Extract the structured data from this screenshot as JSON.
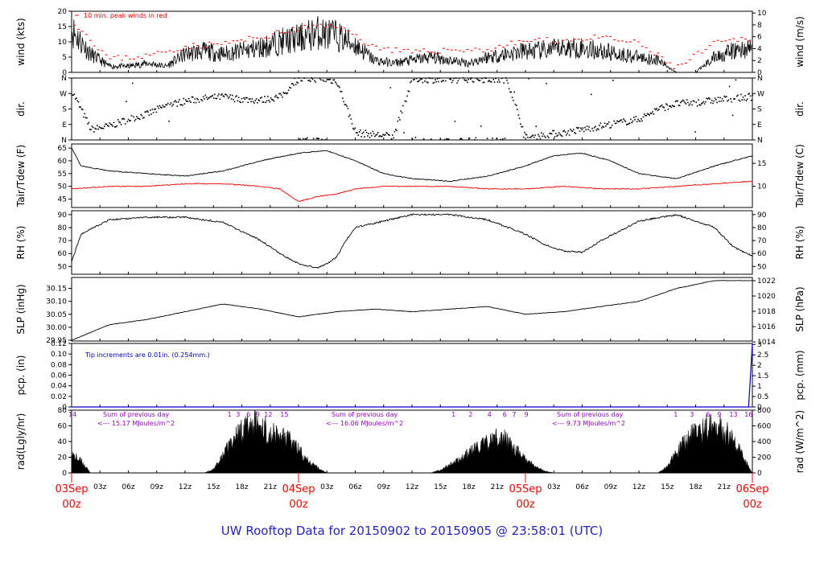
{
  "footer_title": "UW Rooftop Data for 20150902  to  20150905 @ 23:58:01  (UTC)",
  "colors": {
    "black": "#000000",
    "red": "#ff0000",
    "blue": "#0000cc",
    "purple": "#9900cc",
    "footer": "#2222cc"
  },
  "chart_data": [
    {
      "type": "line",
      "id": "wind",
      "ylabel_left": "wind (kts)",
      "ylabel_right": "wind (m/s)",
      "ylim": [
        0,
        20
      ],
      "left_ticks": [
        "0",
        "5",
        "10",
        "15",
        "20"
      ],
      "right_ticks": [
        "0",
        "2",
        "4",
        "6",
        "8",
        "10"
      ],
      "annotation": "10 min. peak winds in red",
      "series": [
        {
          "name": "wind",
          "color": "#000000",
          "x": [
            0,
            2,
            4,
            6,
            8,
            10,
            12,
            14,
            16,
            18,
            20,
            22,
            24,
            26,
            28,
            30,
            32,
            34,
            36,
            38,
            40,
            42,
            44,
            46,
            48,
            50,
            52,
            54,
            56,
            58,
            60,
            62,
            64,
            66,
            68,
            70,
            72
          ],
          "values": [
            14,
            6,
            2,
            2,
            3,
            2,
            6,
            7,
            6,
            7,
            8,
            10,
            11,
            13,
            12,
            9,
            4,
            3,
            4,
            5,
            4,
            3,
            5,
            6,
            7,
            7,
            8,
            8,
            7,
            6,
            5,
            4,
            0,
            0,
            5,
            7,
            8
          ]
        },
        {
          "name": "10 min. peak",
          "color": "#ff0000",
          "x": [
            0,
            4,
            8,
            12,
            16,
            20,
            24,
            28,
            32,
            36,
            40,
            44,
            48,
            52,
            56,
            60,
            64,
            68,
            72
          ],
          "values": [
            17,
            4,
            5,
            8,
            9,
            11,
            14,
            15,
            8,
            6,
            7,
            7,
            10,
            10,
            11,
            9,
            1,
            9,
            11
          ]
        }
      ]
    },
    {
      "type": "scatter",
      "id": "dir",
      "ylabel_left": "dir.",
      "ylabel_right": "dir.",
      "left_ticks": [
        "N",
        "E",
        "S",
        "W",
        "N"
      ],
      "right_ticks": [
        "N",
        "E",
        "S",
        "W",
        "N"
      ],
      "x": [
        0,
        2,
        4,
        6,
        8,
        10,
        12,
        14,
        16,
        18,
        20,
        22,
        24,
        26,
        28,
        30,
        32,
        34,
        36,
        38,
        40,
        42,
        44,
        46,
        48,
        50,
        52,
        54,
        56,
        58,
        60,
        62,
        64,
        66,
        68,
        70,
        72
      ],
      "values": [
        280,
        60,
        80,
        120,
        150,
        200,
        225,
        240,
        250,
        235,
        230,
        250,
        350,
        355,
        340,
        40,
        30,
        20,
        355,
        350,
        345,
        355,
        350,
        350,
        10,
        30,
        40,
        60,
        80,
        100,
        120,
        180,
        210,
        215,
        230,
        240,
        250
      ]
    },
    {
      "type": "line",
      "id": "temp",
      "ylabel_left": "Tair/Tdew (F)",
      "ylabel_right": "Tair/Tdew (C)",
      "left_ticks": [
        "45",
        "50",
        "55",
        "60",
        "65"
      ],
      "right_ticks": [
        "10",
        "15"
      ],
      "series": [
        {
          "name": "Tair",
          "color": "#000000",
          "x": [
            0,
            1,
            4,
            8,
            12,
            16,
            20,
            24,
            27,
            30,
            33,
            36,
            40,
            44,
            48,
            51,
            54,
            57,
            60,
            64,
            68,
            72
          ],
          "values": [
            65,
            58,
            56,
            55,
            54,
            56,
            60,
            63,
            64,
            60,
            55,
            53,
            52,
            54,
            58,
            62,
            63,
            60,
            55,
            53,
            58,
            62
          ]
        },
        {
          "name": "Tdew",
          "color": "#ff0000",
          "x": [
            0,
            4,
            8,
            12,
            16,
            20,
            22,
            24,
            26,
            28,
            30,
            33,
            36,
            40,
            44,
            48,
            52,
            56,
            60,
            64,
            68,
            72
          ],
          "values": [
            49,
            50,
            50,
            51,
            51,
            50,
            49,
            44,
            46,
            47,
            49,
            50,
            50,
            50,
            49,
            49,
            50,
            49,
            49,
            50,
            51,
            52
          ]
        }
      ]
    },
    {
      "type": "line",
      "id": "rh",
      "ylabel_left": "RH (%)",
      "ylabel_right": "RH (%)",
      "left_ticks": [
        "50",
        "60",
        "70",
        "80",
        "90"
      ],
      "right_ticks": [
        "50",
        "60",
        "70",
        "80",
        "90"
      ],
      "series": [
        {
          "name": "RH",
          "color": "#000000",
          "x": [
            0,
            1,
            4,
            8,
            12,
            16,
            20,
            22,
            24,
            26,
            27,
            28,
            29,
            30,
            33,
            36,
            40,
            44,
            48,
            50,
            52,
            54,
            56,
            60,
            64,
            68,
            70,
            72
          ],
          "values": [
            54,
            75,
            86,
            88,
            88,
            84,
            70,
            60,
            52,
            49,
            52,
            57,
            70,
            80,
            85,
            90,
            90,
            86,
            75,
            67,
            62,
            61,
            70,
            85,
            90,
            80,
            65,
            58
          ]
        }
      ]
    },
    {
      "type": "line",
      "id": "slp",
      "ylabel_left": "SLP (inHg)",
      "ylabel_right": "SLP (hPa)",
      "left_ticks": [
        "29.95",
        "30.00",
        "30.05",
        "30.10",
        "30.15"
      ],
      "right_ticks": [
        "1014",
        "1016",
        "1018",
        "1020",
        "1022"
      ],
      "series": [
        {
          "name": "SLP",
          "color": "#000000",
          "x": [
            0,
            4,
            8,
            12,
            16,
            20,
            24,
            28,
            32,
            36,
            40,
            44,
            48,
            52,
            56,
            60,
            64,
            68,
            72
          ],
          "values": [
            29.95,
            30.01,
            30.03,
            30.06,
            30.09,
            30.07,
            30.04,
            30.06,
            30.07,
            30.06,
            30.07,
            30.08,
            30.05,
            30.06,
            30.08,
            30.1,
            30.15,
            30.18,
            30.18
          ]
        }
      ]
    },
    {
      "type": "line",
      "id": "pcp",
      "ylabel_left": "pcp. (in)",
      "ylabel_right": "pcp. (mm)",
      "left_ticks": [
        "0",
        "0.02",
        "0.04",
        "0.06",
        "0.08",
        "0.10",
        "0.12"
      ],
      "right_ticks": [
        "0",
        "0.5",
        "1",
        "1.5",
        "2",
        "2.5",
        "3"
      ],
      "annotation": "Tip increments are 0.01in. (0.254mm.)",
      "series": [
        {
          "name": "pcp",
          "color": "#0000cc",
          "x": [
            0,
            71.6,
            72
          ],
          "values": [
            0,
            0,
            0.12
          ]
        }
      ]
    },
    {
      "type": "area",
      "id": "rad",
      "ylabel_left": "rad(Lgly/hr)",
      "ylabel_right": "rad (W/m^2)",
      "left_ticks": [
        "0",
        "20",
        "40",
        "60",
        "80"
      ],
      "right_ticks": [
        "0",
        "200",
        "400",
        "600",
        "800"
      ],
      "day_labels": [
        "Sum of previous day",
        "Sum of previous day",
        "Sum of previous day"
      ],
      "day_values": [
        "<--- 15.17 MJoules/m^2",
        "<--- 16.06 MJoules/m^2",
        "<--- 9.73 MJoules/m^2"
      ],
      "hour_marks": [
        "14",
        "1",
        "3",
        "6",
        "9",
        "12",
        "15",
        "1",
        "2",
        "4",
        "6",
        "7",
        "9",
        "1",
        "3",
        "6",
        "9",
        "13",
        "16"
      ],
      "x": [
        0,
        1,
        2,
        14,
        15,
        16,
        17,
        18,
        19,
        20,
        21,
        22,
        23,
        24,
        25,
        26,
        27,
        38,
        39,
        40,
        41,
        42,
        43,
        44,
        45,
        46,
        47,
        48,
        49,
        50,
        51,
        62,
        63,
        64,
        65,
        66,
        67,
        68,
        69,
        70,
        71,
        72
      ],
      "values": [
        28,
        18,
        0,
        0,
        5,
        25,
        50,
        65,
        75,
        72,
        60,
        55,
        50,
        35,
        20,
        8,
        0,
        0,
        5,
        12,
        20,
        30,
        40,
        45,
        55,
        50,
        35,
        20,
        10,
        3,
        0,
        0,
        10,
        30,
        50,
        62,
        68,
        72,
        65,
        50,
        25,
        0
      ]
    }
  ],
  "xaxis": {
    "hour_ticks": [
      "03z",
      "06z",
      "09z",
      "12z",
      "15z",
      "18z",
      "21z",
      "03z",
      "06z",
      "09z",
      "12z",
      "15z",
      "18z",
      "21z",
      "03z",
      "06z",
      "09z",
      "12z",
      "15z",
      "18z",
      "21z"
    ],
    "day_ticks": [
      {
        "label": "03Sep",
        "sub": "00z"
      },
      {
        "label": "04Sep",
        "sub": "00z"
      },
      {
        "label": "05Sep",
        "sub": "00z"
      },
      {
        "label": "06Sep",
        "sub": "00z"
      }
    ]
  }
}
